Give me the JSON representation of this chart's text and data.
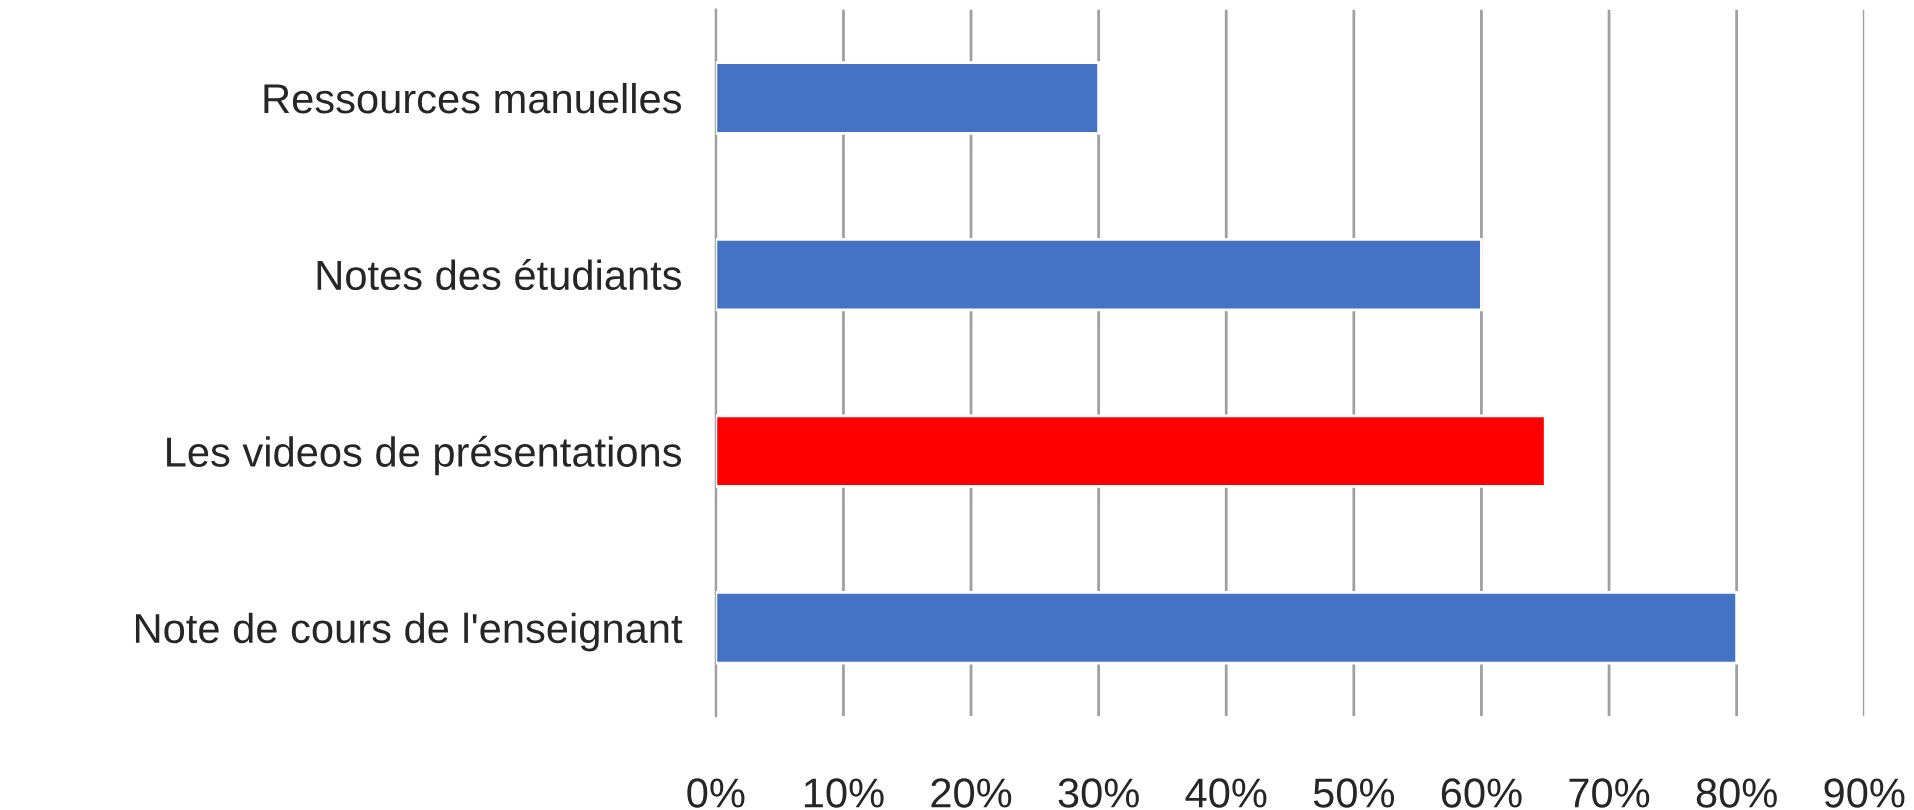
{
  "chart_data": {
    "type": "bar",
    "orientation": "horizontal",
    "categories": [
      "Ressources manuelles",
      "Notes des étudiants",
      "Les videos de présentations",
      "Note de cours de l'enseignant"
    ],
    "values": [
      30,
      60,
      65,
      80
    ],
    "colors": [
      "#4472c4",
      "#4472c4",
      "#ff0000",
      "#4472c4"
    ],
    "xlim": [
      0,
      90
    ],
    "xticks": [
      {
        "value": 0,
        "label": "0%"
      },
      {
        "value": 10,
        "label": "10%"
      },
      {
        "value": 20,
        "label": "20%"
      },
      {
        "value": 30,
        "label": "30%"
      },
      {
        "value": 40,
        "label": "40%"
      },
      {
        "value": 50,
        "label": "50%"
      },
      {
        "value": 60,
        "label": "60%"
      },
      {
        "value": 70,
        "label": "70%"
      },
      {
        "value": 80,
        "label": "80%"
      },
      {
        "value": 90,
        "label": "90%"
      }
    ],
    "grid": "x",
    "legend": false
  }
}
